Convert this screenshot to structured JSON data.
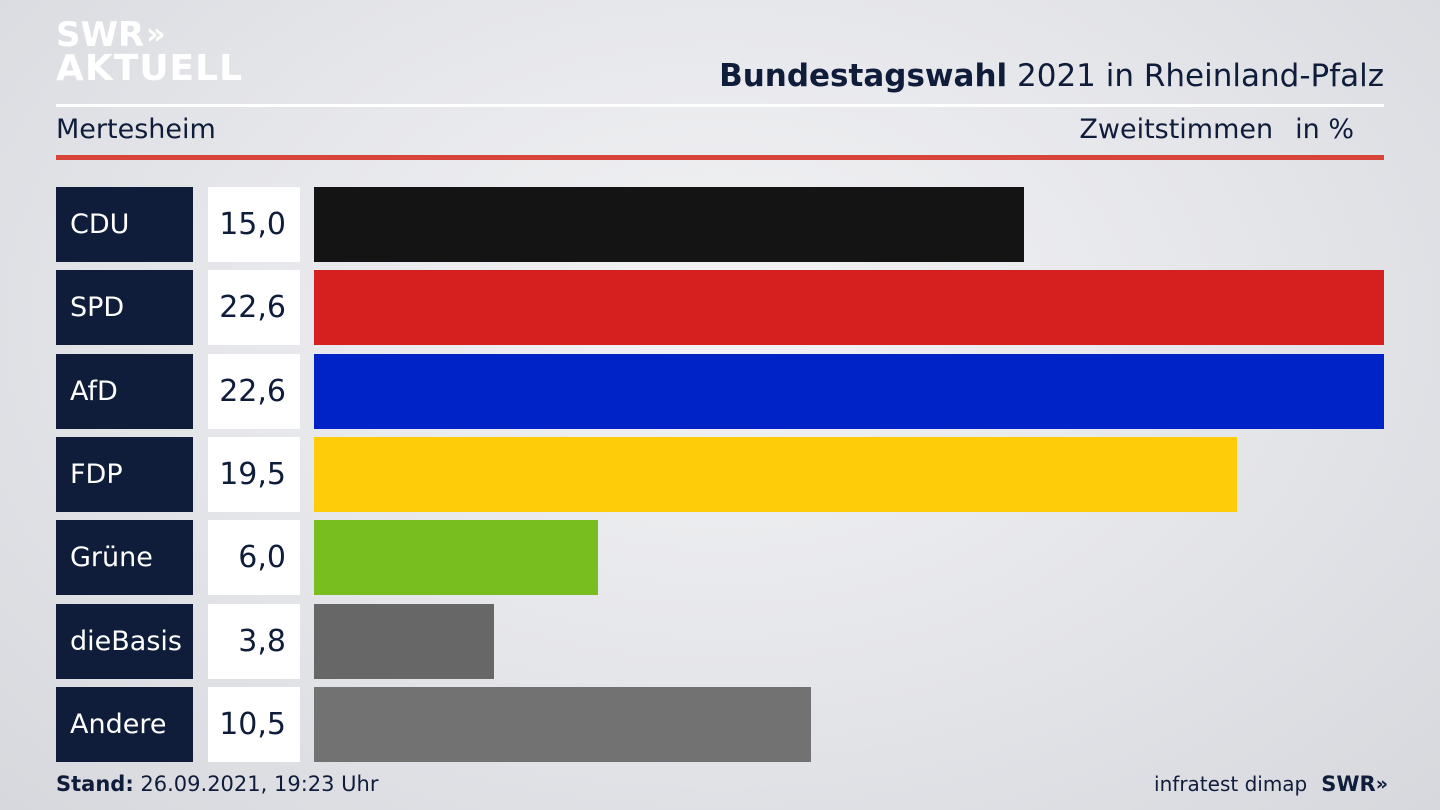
{
  "logo": {
    "line1": "SWR",
    "chevrons": "»",
    "line2": "AKTUELL"
  },
  "header": {
    "title_bold": "Bundestagswahl",
    "title_rest": " 2021 in Rheinland-Pfalz",
    "location": "Mertesheim",
    "measure": "Zweitstimmen",
    "unit": "in %"
  },
  "footer": {
    "stand_label": "Stand:",
    "stand_value": " 26.09.2021, 19:23 Uhr",
    "source": "infratest dimap",
    "brand": "SWR",
    "brand_chevrons": "»"
  },
  "chart_data": {
    "type": "bar",
    "orientation": "horizontal",
    "categories": [
      "CDU",
      "SPD",
      "AfD",
      "FDP",
      "Grüne",
      "dieBasis",
      "Andere"
    ],
    "values": [
      15.0,
      22.6,
      22.6,
      19.5,
      6.0,
      3.8,
      10.5
    ],
    "value_labels": [
      "15,0",
      "22,6",
      "22,6",
      "19,5",
      "6,0",
      "3,8",
      "10,5"
    ],
    "colors": [
      "#141414",
      "#d62020",
      "#0023c8",
      "#ffcc0a",
      "#78be1e",
      "#676767",
      "#727272"
    ],
    "xlim": [
      0,
      22.6
    ],
    "grid": false,
    "legend": "none"
  }
}
